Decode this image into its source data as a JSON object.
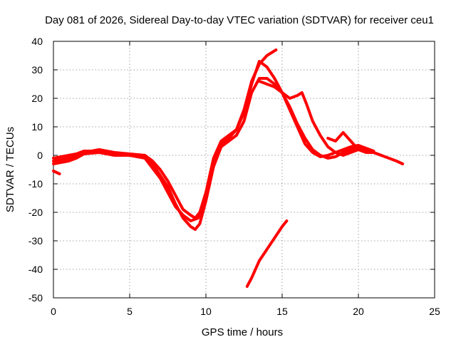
{
  "chart_data": {
    "type": "line",
    "title": "Day 081 of 2026, Sidereal Day-to-day VTEC variation (SDTVAR) for receiver ceu1",
    "xlabel": "GPS time / hours",
    "ylabel": "SDTVAR / TECUs",
    "xlim": [
      0,
      25
    ],
    "ylim": [
      -50,
      40
    ],
    "xticks": [
      0,
      5,
      10,
      15,
      20,
      25
    ],
    "yticks": [
      -50,
      -40,
      -30,
      -20,
      -10,
      0,
      10,
      20,
      30,
      40
    ],
    "xtick_labels": [
      "0",
      "5",
      "10",
      "15",
      "20",
      "25"
    ],
    "ytick_labels": [
      "-50",
      "-40",
      "-30",
      "-20",
      "-10",
      "0",
      "10",
      "20",
      "30",
      "40"
    ],
    "grid": true,
    "color": "#ff0000",
    "series": [
      {
        "name": "track-1",
        "x": [
          0,
          0.5,
          1,
          1.5,
          2,
          2.5,
          3,
          4,
          5,
          6,
          6.5,
          7,
          7.5,
          8,
          8.5,
          9,
          9.3,
          9.6,
          10,
          10.5,
          11,
          11.5,
          12,
          12.5,
          13,
          13.5,
          14,
          14.5,
          15,
          15.5,
          16,
          16.5,
          17,
          17.5,
          18,
          18.5,
          19,
          19.5,
          20,
          20.5,
          21,
          21.5,
          22,
          22.5,
          22.9
        ],
        "y": [
          -3,
          -2.5,
          -2,
          -1,
          0.5,
          1,
          1.5,
          0.8,
          0.2,
          -0.5,
          -3,
          -7,
          -11,
          -17,
          -22,
          -25,
          -26,
          -24,
          -16,
          -4,
          3,
          5,
          7,
          12,
          22,
          27,
          27,
          25,
          22,
          17,
          11,
          6,
          2,
          0,
          -1,
          -0.5,
          1,
          2,
          3,
          2,
          1,
          0,
          -1,
          -2,
          -3
        ]
      },
      {
        "name": "track-2",
        "x": [
          0,
          0.5,
          1,
          1.5,
          2,
          2.5,
          3,
          4,
          5,
          6,
          6.5,
          7,
          7.5,
          8,
          8.5,
          9,
          9.3,
          9.6,
          10,
          10.5,
          11,
          11.5,
          12,
          12.5,
          13,
          13.5,
          14,
          14.5,
          15,
          15.5,
          16,
          16.5,
          17,
          17.5,
          18,
          18.5,
          19,
          19.5,
          20,
          20.5,
          21
        ],
        "y": [
          -1,
          -0.5,
          0,
          0.5,
          1.5,
          1.5,
          2,
          1,
          0.5,
          0,
          -2,
          -5,
          -9,
          -14,
          -19,
          -21,
          -22,
          -20,
          -13,
          -1,
          5,
          7,
          9,
          15,
          25,
          33,
          31,
          27,
          22,
          16,
          10,
          4,
          1,
          -0.5,
          0,
          1,
          2,
          3,
          3.5,
          2.5,
          1.5
        ]
      },
      {
        "name": "track-3",
        "x": [
          0,
          1,
          2,
          3,
          4,
          5,
          6,
          7,
          8,
          8.5,
          9,
          9.5,
          10,
          10.5,
          11,
          11.5,
          12,
          12.5,
          13,
          13.5,
          14,
          14.3,
          14.6
        ],
        "y": [
          -2,
          -1,
          0.5,
          1,
          0,
          0,
          -1,
          -8,
          -18,
          -21,
          -23,
          -22,
          -14,
          -2,
          4,
          6,
          9,
          16,
          26,
          32,
          35,
          36,
          37
        ]
      },
      {
        "name": "track-4",
        "x": [
          13.5,
          14,
          14.5,
          15,
          15.5,
          16,
          16.3,
          16.6,
          17,
          17.5,
          18,
          18.5,
          19,
          19.5,
          20
        ],
        "y": [
          26,
          25,
          24,
          22,
          20,
          21,
          22,
          18,
          12,
          7,
          3,
          1,
          0,
          1,
          2
        ]
      },
      {
        "name": "track-5",
        "x": [
          18,
          18.5,
          19,
          19.5,
          20,
          20.5,
          21,
          21.5
        ],
        "y": [
          6,
          5,
          8,
          5,
          2,
          1,
          1,
          0
        ]
      },
      {
        "name": "track-6",
        "x": [
          0,
          0.4
        ],
        "y": [
          -5.5,
          -6.5
        ]
      },
      {
        "name": "track-7",
        "x": [
          12.7,
          13,
          13.5,
          14,
          14.5,
          15,
          15.3
        ],
        "y": [
          -46,
          -43,
          -37,
          -33,
          -29,
          -25,
          -23
        ]
      }
    ]
  }
}
